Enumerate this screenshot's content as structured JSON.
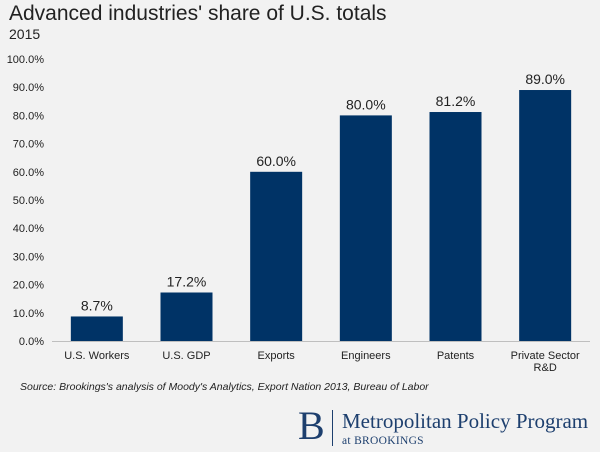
{
  "chart_data": {
    "type": "bar",
    "title": "Advanced industries' share of U.S. totals",
    "subtitle": "2015",
    "categories": [
      "U.S. Workers",
      "U.S. GDP",
      "Exports",
      "Engineers",
      "Patents",
      "Private Sector R&D"
    ],
    "category_lines": [
      [
        "U.S. Workers"
      ],
      [
        "U.S. GDP"
      ],
      [
        "Exports"
      ],
      [
        "Engineers"
      ],
      [
        "Patents"
      ],
      [
        "Private Sector",
        "R&D"
      ]
    ],
    "values": [
      8.7,
      17.2,
      60.0,
      80.0,
      81.2,
      89.0
    ],
    "data_labels": [
      "8.7%",
      "17.2%",
      "60.0%",
      "80.0%",
      "81.2%",
      "89.0%"
    ],
    "ylim": [
      0,
      100
    ],
    "yticks": [
      "0.0%",
      "10.0%",
      "20.0%",
      "30.0%",
      "40.0%",
      "50.0%",
      "60.0%",
      "70.0%",
      "80.0%",
      "90.0%",
      "100.0%"
    ],
    "grid": false,
    "bar_color": "#003366"
  },
  "source": "Source: Brookings's analysis of Moody's Analytics, Export Nation 2013, Bureau of Labor",
  "logo": {
    "letter": "B",
    "name": "Metropolitan Policy Program",
    "sub": "at BROOKINGS"
  }
}
